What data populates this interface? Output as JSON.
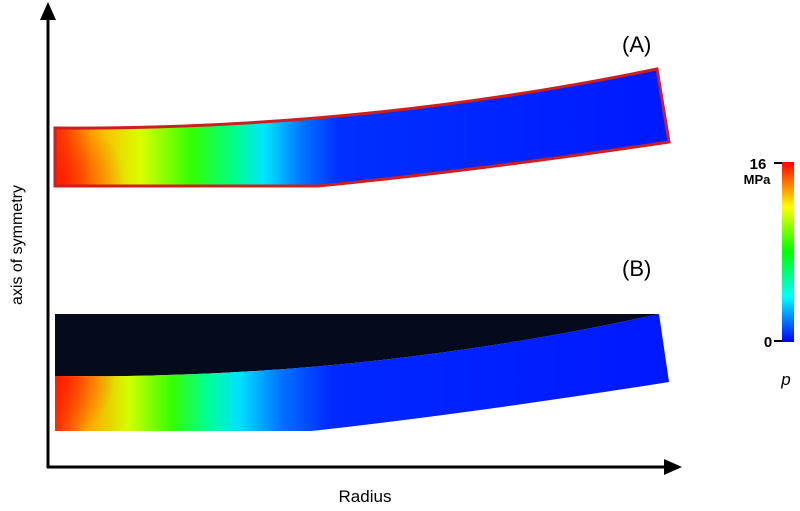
{
  "panel_a_label": "(A)",
  "panel_b_label": "(B)",
  "x_axis_label": "Radius",
  "y_axis_label": "axis of symmetry",
  "colorbar": {
    "max_value": "16",
    "unit": "MPa",
    "min_value": "0",
    "variable": "p",
    "min_pressure_mpa": 0,
    "max_pressure_mpa": 16,
    "colormap": [
      "#0000ff",
      "#00ffff",
      "#00ff00",
      "#ffff00",
      "#ff0000"
    ]
  },
  "colors": {
    "outline_red": "#cc1f1f",
    "dark_region": "#050a1c"
  }
}
